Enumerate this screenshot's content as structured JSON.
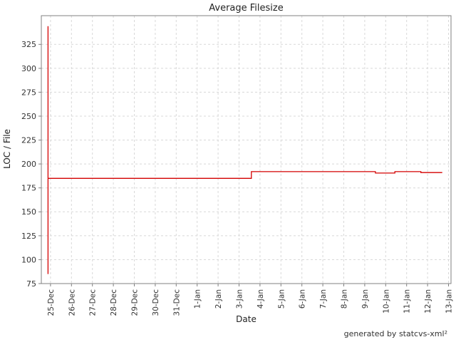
{
  "chart_data": {
    "type": "line",
    "title": "Average Filesize",
    "xlabel": "Date",
    "ylabel": "LOC / File",
    "credit": "generated by statcvs-xml²",
    "x_tick_labels": [
      "25-Dec",
      "26-Dec",
      "27-Dec",
      "28-Dec",
      "29-Dec",
      "30-Dec",
      "31-Dec",
      "1-Jan",
      "2-Jan",
      "3-Jan",
      "4-Jan",
      "5-Jan",
      "6-Jan",
      "7-Jan",
      "8-Jan",
      "9-Jan",
      "10-Jan",
      "11-Jan",
      "12-Jan",
      "13-Jan"
    ],
    "y_ticks": [
      75,
      100,
      125,
      150,
      175,
      200,
      225,
      250,
      275,
      300,
      325
    ],
    "ylim": [
      75,
      355
    ],
    "xlim_tick_units": [
      -0.44,
      19.12
    ],
    "grid": true,
    "legend": "none",
    "colors": {
      "line": "#d40000",
      "grid": "#d8d8d8",
      "border": "#808080",
      "tick_text": "#333333",
      "background": "#ffffff"
    },
    "series": [
      {
        "name": "Average Filesize",
        "style": "step",
        "points": [
          [
            -0.12,
            344
          ],
          [
            -0.12,
            85
          ],
          [
            -0.12,
            185
          ],
          [
            9.59,
            185
          ],
          [
            9.59,
            192
          ],
          [
            15.51,
            192
          ],
          [
            15.51,
            190.5
          ],
          [
            16.44,
            190.5
          ],
          [
            16.44,
            192
          ],
          [
            17.68,
            192
          ],
          [
            17.68,
            191
          ],
          [
            18.7,
            191
          ]
        ]
      }
    ]
  }
}
